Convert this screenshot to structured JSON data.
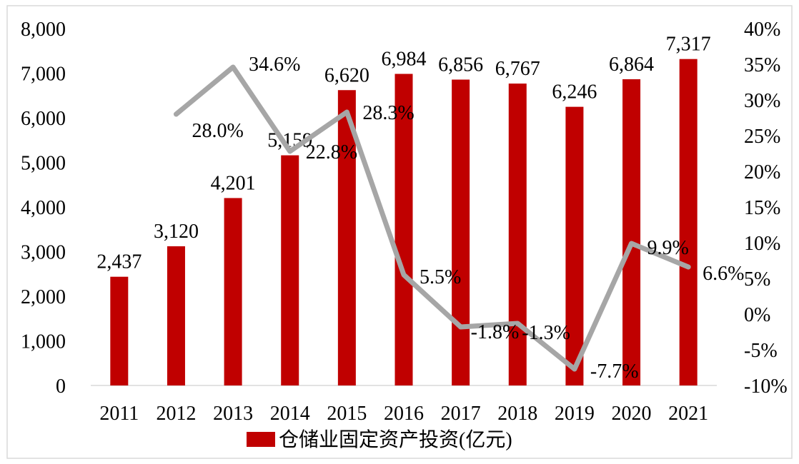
{
  "chart_data": {
    "type": "bar",
    "categories": [
      "2011",
      "2012",
      "2013",
      "2014",
      "2015",
      "2016",
      "2017",
      "2018",
      "2019",
      "2020",
      "2021"
    ],
    "series": [
      {
        "name": "仓储业固定资产投资(亿元)",
        "type": "bar",
        "axis": "left",
        "color": "#c00000",
        "values": [
          2437,
          3120,
          4201,
          5159,
          6620,
          6984,
          6856,
          6767,
          6246,
          6864,
          7317
        ],
        "value_labels": [
          "2,437",
          "3,120",
          "4,201",
          "5,159",
          "6,620",
          "6,984",
          "6,856",
          "6,767",
          "6,246",
          "6,864",
          "7,317"
        ]
      },
      {
        "type": "line",
        "axis": "right",
        "color": "#a6a6a6",
        "values": [
          null,
          28.0,
          34.6,
          22.8,
          28.3,
          5.5,
          -1.8,
          -1.3,
          -7.7,
          9.9,
          6.6
        ],
        "value_labels": [
          "",
          "28.0%",
          "34.6%",
          "22.8%",
          "28.3%",
          "5.5%",
          "-1.8%",
          "-1.3%",
          "-7.7%",
          "9.9%",
          "6.6%"
        ]
      }
    ],
    "y_left": {
      "ylim": [
        0,
        8000
      ],
      "ticks": [
        0,
        1000,
        2000,
        3000,
        4000,
        5000,
        6000,
        7000,
        8000
      ],
      "tick_labels": [
        "0",
        "1,000",
        "2,000",
        "3,000",
        "4,000",
        "5,000",
        "6,000",
        "7,000",
        "8,000"
      ]
    },
    "y_right": {
      "ylim": [
        -10,
        40
      ],
      "ticks": [
        -10,
        -5,
        0,
        5,
        10,
        15,
        20,
        25,
        30,
        35,
        40
      ],
      "tick_labels": [
        "-10%",
        "-5%",
        "0%",
        "5%",
        "10%",
        "15%",
        "20%",
        "25%",
        "30%",
        "35%",
        "40%"
      ]
    },
    "grid": false,
    "legend": {
      "position": "bottom",
      "entries": [
        "仓储业固定资产投资(亿元)"
      ]
    }
  }
}
